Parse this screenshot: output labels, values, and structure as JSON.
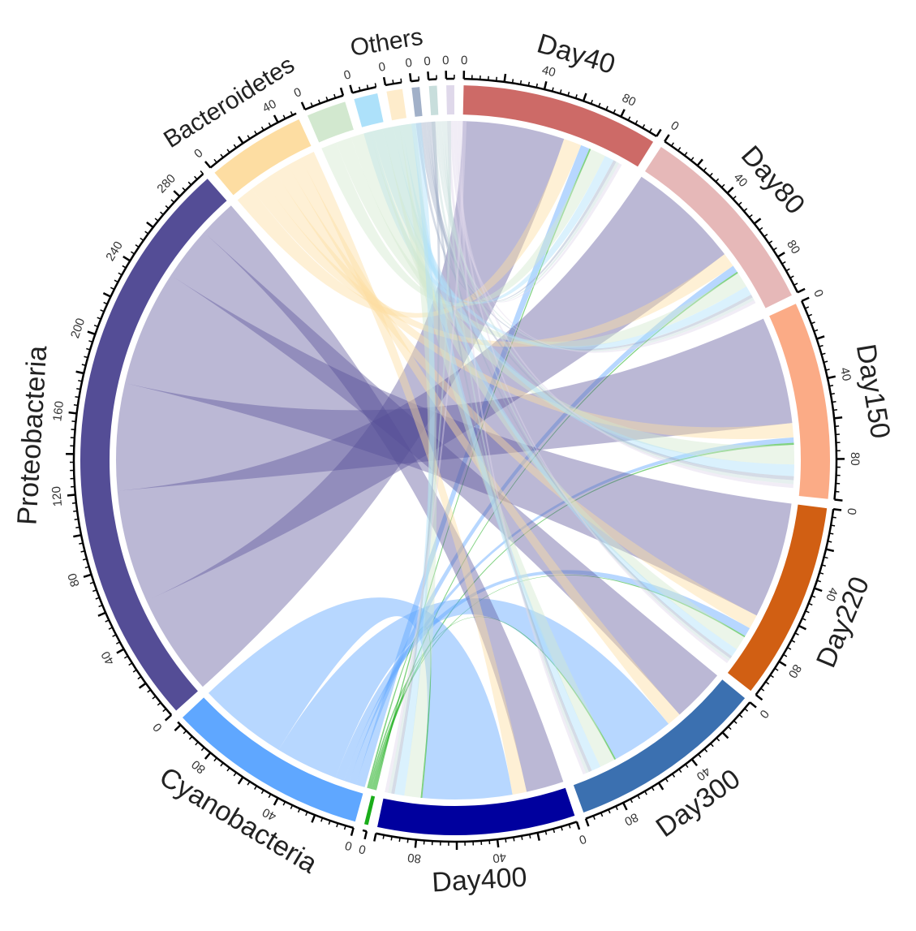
{
  "chart_data": {
    "type": "chord",
    "title": "",
    "sectors": [
      {
        "name": "Day40",
        "group": "sample",
        "total": 100,
        "color": "#cd6a67",
        "label_size": 34,
        "tick_labels": [
          0,
          40,
          80
        ]
      },
      {
        "name": "Day80",
        "group": "sample",
        "total": 100,
        "color": "#e6b8b8",
        "label_size": 34,
        "tick_labels": [
          0,
          40,
          80
        ]
      },
      {
        "name": "Day150",
        "group": "sample",
        "total": 100,
        "color": "#fbab86",
        "label_size": 34,
        "tick_labels": [
          0,
          40,
          80
        ]
      },
      {
        "name": "Day220",
        "group": "sample",
        "total": 100,
        "color": "#d15f13",
        "label_size": 34,
        "tick_labels": [
          0,
          40,
          80
        ]
      },
      {
        "name": "Day300",
        "group": "sample",
        "total": 100,
        "color": "#3b70b0",
        "label_size": 34,
        "tick_labels": [
          0,
          40,
          80
        ]
      },
      {
        "name": "Day400",
        "group": "sample",
        "total": 100,
        "color": "#00009e",
        "label_size": 34,
        "tick_labels": [
          0,
          40,
          80
        ]
      },
      {
        "name": "",
        "group": "phylum",
        "total": 2,
        "color": "#1aad1a",
        "label_size": 0,
        "tick_labels": [
          0
        ]
      },
      {
        "name": "Cyanobacteria",
        "group": "phylum",
        "total": 102,
        "color": "#5fa7ff",
        "label_size": 34,
        "tick_labels": [
          0,
          40,
          80
        ]
      },
      {
        "name": "Proteobacteria",
        "group": "phylum",
        "total": 296,
        "color": "#544d96",
        "label_size": 34,
        "tick_labels": [
          0,
          40,
          80,
          120,
          160,
          200,
          240,
          280
        ]
      },
      {
        "name": "Bacteroidetes",
        "group": "phylum",
        "total": 50,
        "color": "#fddda2",
        "label_size": 30,
        "tick_labels": [
          0,
          40
        ]
      },
      {
        "name": "",
        "group": "phylum",
        "total": 20,
        "color": "#d2e8cf",
        "label_size": 0,
        "tick_labels": [
          0
        ]
      },
      {
        "name": "",
        "group": "phylum",
        "total": 12,
        "color": "#ade1fa",
        "label_size": 0,
        "tick_labels": [
          0
        ]
      },
      {
        "name": "Others",
        "group": "phylum",
        "total": 8,
        "color": "#feeccb",
        "label_size": 30,
        "tick_labels": [
          0
        ]
      },
      {
        "name": "",
        "group": "phylum",
        "total": 4,
        "color": "#a1b0c8",
        "label_size": 0,
        "tick_labels": [
          0
        ]
      },
      {
        "name": "",
        "group": "phylum",
        "total": 4,
        "color": "#c8dedc",
        "label_size": 0,
        "tick_labels": [
          0
        ]
      },
      {
        "name": "",
        "group": "phylum",
        "total": 4,
        "color": "#dfd8ea",
        "label_size": 0,
        "tick_labels": [
          0
        ]
      }
    ],
    "links": [
      [
        "Day40",
        "Proteobacteria",
        57
      ],
      [
        "Day40",
        "Bacteroidetes",
        10
      ],
      [
        "Day40",
        "Cyanobacteria",
        5
      ],
      [
        "Day40",
        "",
        20
      ],
      [
        "Day80",
        "Proteobacteria",
        63
      ],
      [
        "Day80",
        "Bacteroidetes",
        8
      ],
      [
        "Day80",
        "Cyanobacteria",
        4
      ],
      [
        "Day80",
        "",
        20
      ],
      [
        "Day150",
        "Proteobacteria",
        60
      ],
      [
        "Day150",
        "Bacteroidetes",
        8
      ],
      [
        "Day150",
        "Cyanobacteria",
        3
      ],
      [
        "Day150",
        "",
        25
      ],
      [
        "Day220",
        "Proteobacteria",
        65
      ],
      [
        "Day220",
        "Bacteroidetes",
        8
      ],
      [
        "Day220",
        "Cyanobacteria",
        5
      ],
      [
        "Day220",
        "",
        18
      ],
      [
        "Day300",
        "Proteobacteria",
        30
      ],
      [
        "Day300",
        "Bacteroidetes",
        8
      ],
      [
        "Day300",
        "Cyanobacteria",
        35
      ],
      [
        "Day300",
        "",
        20
      ],
      [
        "Day400",
        "Proteobacteria",
        21
      ],
      [
        "Day400",
        "Bacteroidetes",
        8
      ],
      [
        "Day400",
        "Cyanobacteria",
        50
      ],
      [
        "Day400",
        "",
        21
      ]
    ],
    "legend": "none",
    "grid": false
  }
}
